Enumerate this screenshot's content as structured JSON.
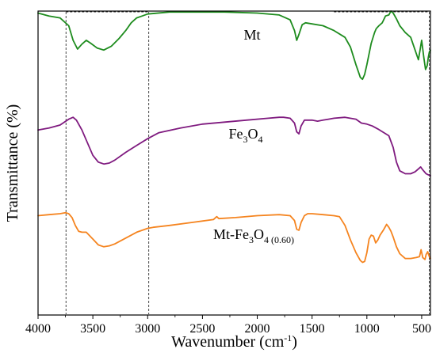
{
  "chart_data": {
    "type": "line",
    "xlabel": "Wavenumber (cm",
    "xlabel_sup": "-1",
    "xlabel_close": ")",
    "ylabel": "Transmittance (%)",
    "xlim": [
      4000,
      420
    ],
    "x_reversed": true,
    "x_ticks": [
      4000,
      3500,
      3000,
      2500,
      2000,
      1500,
      1000,
      500
    ],
    "x_tick_labels": [
      "4000",
      "3500",
      "3000",
      "2500",
      "2000",
      "1500",
      "1000",
      "500"
    ],
    "y_ticks": false,
    "grid": false,
    "reference_lines": [
      3745,
      2990,
      430
    ],
    "series": [
      {
        "name": "Mt",
        "label_parts": [
          {
            "t": "Mt"
          }
        ],
        "color": "#1e8c1e",
        "offset": 200,
        "points": [
          [
            4000,
            98
          ],
          [
            3900,
            95
          ],
          [
            3800,
            93
          ],
          [
            3720,
            85
          ],
          [
            3680,
            70
          ],
          [
            3640,
            61
          ],
          [
            3600,
            66
          ],
          [
            3560,
            70
          ],
          [
            3520,
            67
          ],
          [
            3460,
            62
          ],
          [
            3400,
            60
          ],
          [
            3330,
            64
          ],
          [
            3260,
            72
          ],
          [
            3200,
            80
          ],
          [
            3150,
            88
          ],
          [
            3100,
            93
          ],
          [
            3050,
            95
          ],
          [
            3000,
            97
          ],
          [
            2800,
            99
          ],
          [
            2500,
            99
          ],
          [
            2300,
            99
          ],
          [
            2000,
            98
          ],
          [
            1800,
            96
          ],
          [
            1700,
            91
          ],
          [
            1660,
            80
          ],
          [
            1640,
            70
          ],
          [
            1620,
            76
          ],
          [
            1590,
            86
          ],
          [
            1560,
            88
          ],
          [
            1400,
            85
          ],
          [
            1300,
            80
          ],
          [
            1200,
            73
          ],
          [
            1150,
            63
          ],
          [
            1100,
            45
          ],
          [
            1060,
            32
          ],
          [
            1040,
            30
          ],
          [
            1020,
            35
          ],
          [
            1000,
            45
          ],
          [
            960,
            67
          ],
          [
            930,
            78
          ],
          [
            915,
            82
          ],
          [
            890,
            85
          ],
          [
            860,
            88
          ],
          [
            830,
            95
          ],
          [
            800,
            96
          ],
          [
            780,
            100
          ],
          [
            760,
            98
          ],
          [
            730,
            92
          ],
          [
            700,
            85
          ],
          [
            650,
            78
          ],
          [
            600,
            73
          ],
          [
            560,
            60
          ],
          [
            530,
            50
          ],
          [
            515,
            60
          ],
          [
            500,
            70
          ],
          [
            480,
            52
          ],
          [
            465,
            40
          ],
          [
            450,
            44
          ],
          [
            440,
            52
          ],
          [
            430,
            58
          ],
          [
            420,
            60
          ]
        ]
      },
      {
        "name": "Fe3O4",
        "label_parts": [
          {
            "t": "Fe"
          },
          {
            "t": "3",
            "sub": true
          },
          {
            "t": "O"
          },
          {
            "t": "4",
            "sub": true
          }
        ],
        "color": "#7f1a7f",
        "offset": 100,
        "points": [
          [
            4000,
            78
          ],
          [
            3900,
            80
          ],
          [
            3800,
            83
          ],
          [
            3720,
            89
          ],
          [
            3680,
            91
          ],
          [
            3650,
            88
          ],
          [
            3600,
            78
          ],
          [
            3550,
            65
          ],
          [
            3500,
            52
          ],
          [
            3450,
            45
          ],
          [
            3400,
            43
          ],
          [
            3350,
            44
          ],
          [
            3300,
            47
          ],
          [
            3200,
            55
          ],
          [
            3100,
            62
          ],
          [
            3000,
            69
          ],
          [
            2900,
            75
          ],
          [
            2700,
            80
          ],
          [
            2500,
            84
          ],
          [
            2300,
            86
          ],
          [
            2100,
            88
          ],
          [
            1900,
            90
          ],
          [
            1800,
            91
          ],
          [
            1760,
            91
          ],
          [
            1700,
            90
          ],
          [
            1660,
            85
          ],
          [
            1640,
            76
          ],
          [
            1620,
            74
          ],
          [
            1600,
            82
          ],
          [
            1570,
            88
          ],
          [
            1500,
            88
          ],
          [
            1450,
            87
          ],
          [
            1400,
            88
          ],
          [
            1350,
            89
          ],
          [
            1300,
            90
          ],
          [
            1200,
            91
          ],
          [
            1100,
            89
          ],
          [
            1050,
            85
          ],
          [
            1000,
            84
          ],
          [
            950,
            82
          ],
          [
            900,
            79
          ],
          [
            800,
            72
          ],
          [
            760,
            60
          ],
          [
            730,
            45
          ],
          [
            700,
            36
          ],
          [
            650,
            33
          ],
          [
            600,
            33
          ],
          [
            560,
            35
          ],
          [
            530,
            38
          ],
          [
            510,
            40
          ],
          [
            490,
            37
          ],
          [
            460,
            33
          ],
          [
            440,
            32
          ],
          [
            420,
            31
          ]
        ]
      },
      {
        "name": "Mt-Fe3O4 (0.60)",
        "label_parts": [
          {
            "t": "Mt-Fe"
          },
          {
            "t": "3",
            "sub": true
          },
          {
            "t": "O"
          },
          {
            "t": "4 (0.60)",
            "sub": true
          }
        ],
        "color": "#f5841f",
        "offset": 0,
        "points": [
          [
            4000,
            90
          ],
          [
            3900,
            91
          ],
          [
            3800,
            92
          ],
          [
            3750,
            93
          ],
          [
            3720,
            92
          ],
          [
            3690,
            88
          ],
          [
            3660,
            80
          ],
          [
            3630,
            74
          ],
          [
            3600,
            73
          ],
          [
            3560,
            73
          ],
          [
            3500,
            66
          ],
          [
            3450,
            60
          ],
          [
            3400,
            58
          ],
          [
            3350,
            59
          ],
          [
            3300,
            61
          ],
          [
            3200,
            67
          ],
          [
            3100,
            73
          ],
          [
            3000,
            77
          ],
          [
            2950,
            78
          ],
          [
            2800,
            80
          ],
          [
            2600,
            83
          ],
          [
            2400,
            86
          ],
          [
            2370,
            89
          ],
          [
            2350,
            87
          ],
          [
            2200,
            88
          ],
          [
            2000,
            90
          ],
          [
            1800,
            91
          ],
          [
            1700,
            90
          ],
          [
            1660,
            85
          ],
          [
            1640,
            76
          ],
          [
            1620,
            75
          ],
          [
            1600,
            83
          ],
          [
            1570,
            90
          ],
          [
            1540,
            92
          ],
          [
            1500,
            92
          ],
          [
            1400,
            91
          ],
          [
            1300,
            90
          ],
          [
            1250,
            89
          ],
          [
            1200,
            80
          ],
          [
            1150,
            65
          ],
          [
            1100,
            52
          ],
          [
            1060,
            44
          ],
          [
            1040,
            42
          ],
          [
            1020,
            43
          ],
          [
            1000,
            52
          ],
          [
            980,
            66
          ],
          [
            960,
            70
          ],
          [
            940,
            69
          ],
          [
            920,
            62
          ],
          [
            900,
            65
          ],
          [
            880,
            70
          ],
          [
            850,
            75
          ],
          [
            820,
            81
          ],
          [
            800,
            78
          ],
          [
            780,
            74
          ],
          [
            760,
            68
          ],
          [
            730,
            58
          ],
          [
            700,
            51
          ],
          [
            650,
            46
          ],
          [
            600,
            46
          ],
          [
            550,
            47
          ],
          [
            520,
            48
          ],
          [
            505,
            55
          ],
          [
            490,
            47
          ],
          [
            470,
            45
          ],
          [
            460,
            50
          ],
          [
            445,
            53
          ],
          [
            430,
            48
          ],
          [
            420,
            46
          ]
        ]
      }
    ]
  }
}
